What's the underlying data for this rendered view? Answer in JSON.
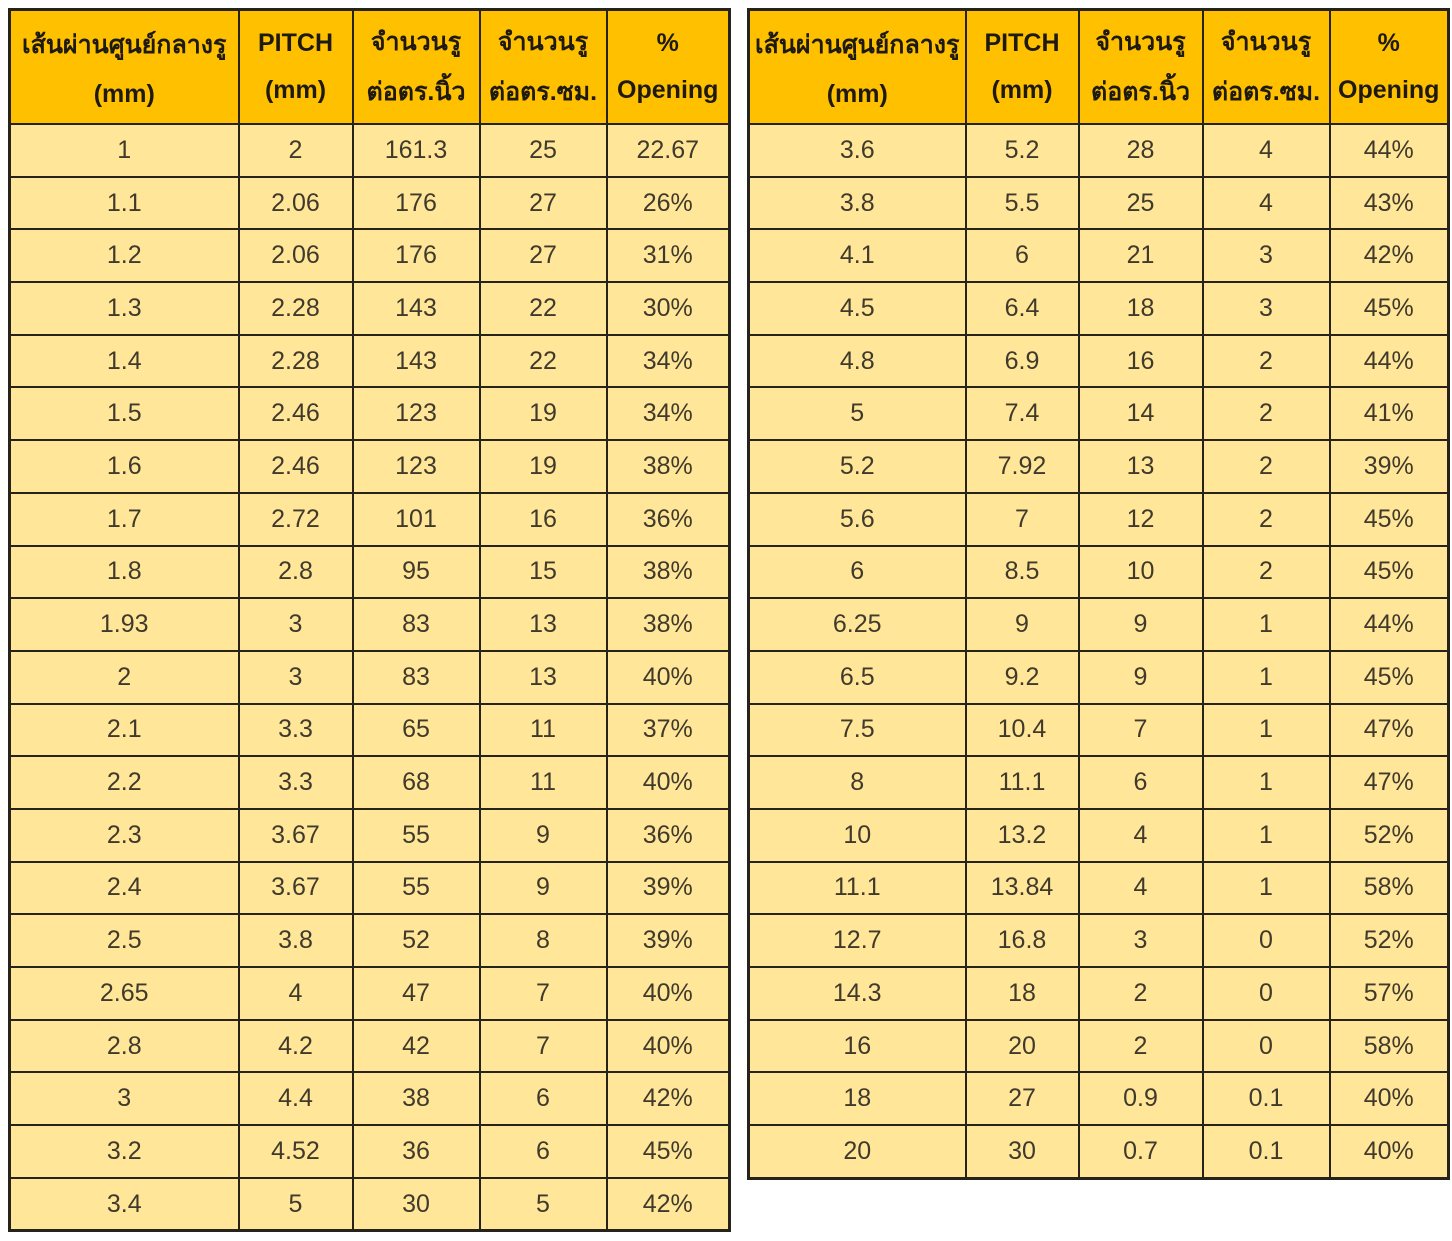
{
  "columns": [
    {
      "line1": "เส้นผ่านศูนย์กลางรู",
      "line2": "(mm)"
    },
    {
      "line1": "PITCH",
      "line2": "(mm)"
    },
    {
      "line1": "จำนวนรู",
      "line2": "ต่อตร.นิ้ว"
    },
    {
      "line1": "จำนวนรู",
      "line2": "ต่อตร.ซม."
    },
    {
      "line1": "%",
      "line2": "Opening"
    }
  ],
  "left_table": {
    "rows": [
      [
        "1",
        "2",
        "161.3",
        "25",
        "22.67"
      ],
      [
        "1.1",
        "2.06",
        "176",
        "27",
        "26%"
      ],
      [
        "1.2",
        "2.06",
        "176",
        "27",
        "31%"
      ],
      [
        "1.3",
        "2.28",
        "143",
        "22",
        "30%"
      ],
      [
        "1.4",
        "2.28",
        "143",
        "22",
        "34%"
      ],
      [
        "1.5",
        "2.46",
        "123",
        "19",
        "34%"
      ],
      [
        "1.6",
        "2.46",
        "123",
        "19",
        "38%"
      ],
      [
        "1.7",
        "2.72",
        "101",
        "16",
        "36%"
      ],
      [
        "1.8",
        "2.8",
        "95",
        "15",
        "38%"
      ],
      [
        "1.93",
        "3",
        "83",
        "13",
        "38%"
      ],
      [
        "2",
        "3",
        "83",
        "13",
        "40%"
      ],
      [
        "2.1",
        "3.3",
        "65",
        "11",
        "37%"
      ],
      [
        "2.2",
        "3.3",
        "68",
        "11",
        "40%"
      ],
      [
        "2.3",
        "3.67",
        "55",
        "9",
        "36%"
      ],
      [
        "2.4",
        "3.67",
        "55",
        "9",
        "39%"
      ],
      [
        "2.5",
        "3.8",
        "52",
        "8",
        "39%"
      ],
      [
        "2.65",
        "4",
        "47",
        "7",
        "40%"
      ],
      [
        "2.8",
        "4.2",
        "42",
        "7",
        "40%"
      ],
      [
        "3",
        "4.4",
        "38",
        "6",
        "42%"
      ],
      [
        "3.2",
        "4.52",
        "36",
        "6",
        "45%"
      ],
      [
        "3.4",
        "5",
        "30",
        "5",
        "42%"
      ]
    ]
  },
  "right_table": {
    "rows": [
      [
        "3.6",
        "5.2",
        "28",
        "4",
        "44%"
      ],
      [
        "3.8",
        "5.5",
        "25",
        "4",
        "43%"
      ],
      [
        "4.1",
        "6",
        "21",
        "3",
        "42%"
      ],
      [
        "4.5",
        "6.4",
        "18",
        "3",
        "45%"
      ],
      [
        "4.8",
        "6.9",
        "16",
        "2",
        "44%"
      ],
      [
        "5",
        "7.4",
        "14",
        "2",
        "41%"
      ],
      [
        "5.2",
        "7.92",
        "13",
        "2",
        "39%"
      ],
      [
        "5.6",
        "7",
        "12",
        "2",
        "45%"
      ],
      [
        "6",
        "8.5",
        "10",
        "2",
        "45%"
      ],
      [
        "6.25",
        "9",
        "9",
        "1",
        "44%"
      ],
      [
        "6.5",
        "9.2",
        "9",
        "1",
        "45%"
      ],
      [
        "7.5",
        "10.4",
        "7",
        "1",
        "47%"
      ],
      [
        "8",
        "11.1",
        "6",
        "1",
        "47%"
      ],
      [
        "10",
        "13.2",
        "4",
        "1",
        "52%"
      ],
      [
        "11.1",
        "13.84",
        "4",
        "1",
        "58%"
      ],
      [
        "12.7",
        "16.8",
        "3",
        "0",
        "52%"
      ],
      [
        "14.3",
        "18",
        "2",
        "0",
        "57%"
      ],
      [
        "16",
        "20",
        "2",
        "0",
        "58%"
      ],
      [
        "18",
        "27",
        "0.9",
        "0.1",
        "40%"
      ],
      [
        "20",
        "30",
        "0.7",
        "0.1",
        "40%"
      ]
    ]
  },
  "colors": {
    "header_bg": "#FFC000",
    "cell_bg": "#FFE699",
    "border": "#26231A",
    "text": "#3F3A2B",
    "page_bg": "#FFFFFF"
  }
}
